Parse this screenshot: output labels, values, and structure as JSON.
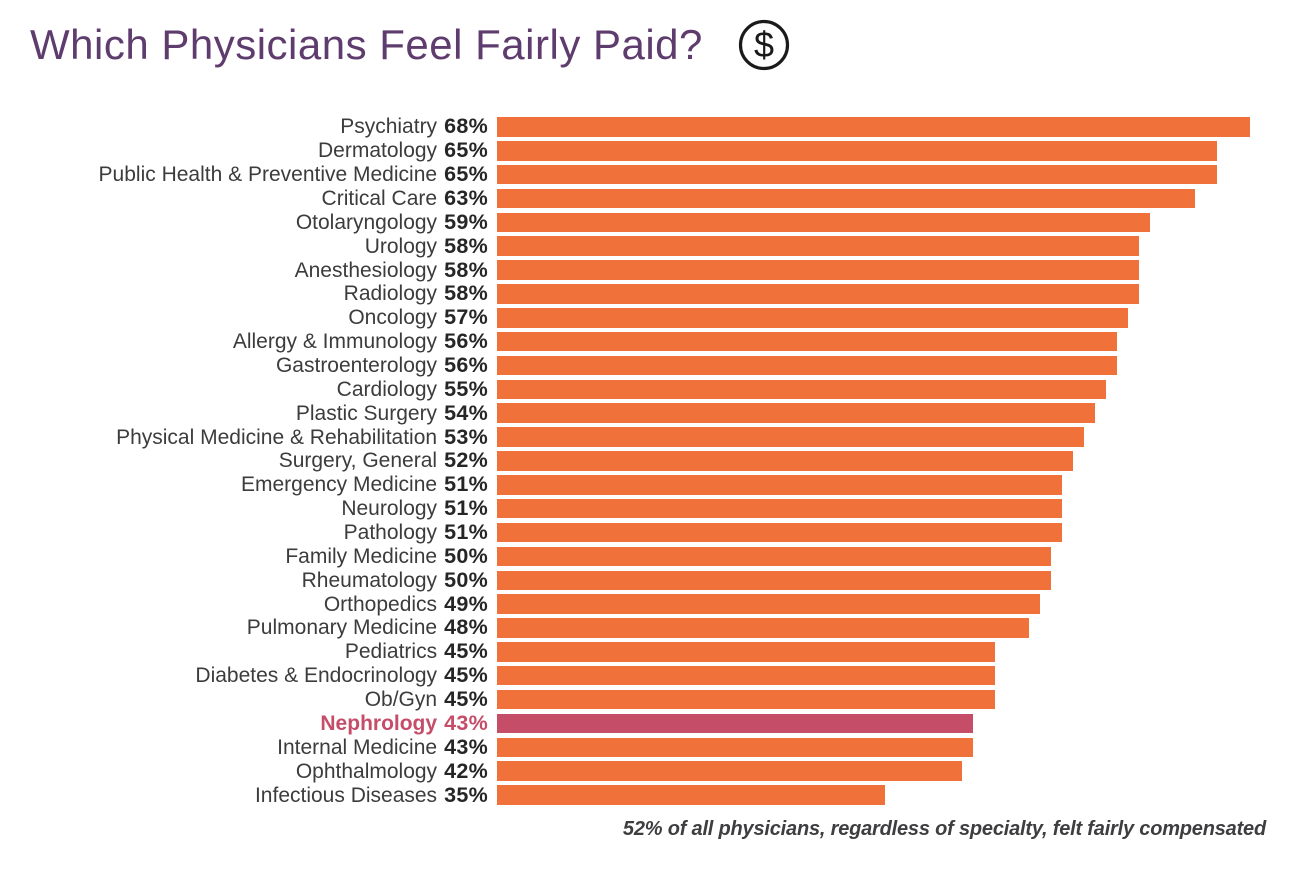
{
  "header": {
    "title": "Which Physicians Feel Fairly Paid?",
    "icon": "dollar-circle-icon"
  },
  "footnote": "52% of all physicians, regardless of specialty, felt fairly compensated",
  "colors": {
    "bar": "#F0713A",
    "highlight_bar": "#C64D68",
    "title": "#5E3C6E",
    "label": "#3C3C3C",
    "value": "#262626",
    "footnote": "#3E3E40",
    "icon": "#1A1A1A"
  },
  "chart_data": {
    "type": "bar",
    "orientation": "horizontal",
    "title": "Which Physicians Feel Fairly Paid?",
    "xlabel": "",
    "ylabel": "",
    "xlim": [
      0,
      68
    ],
    "grid": false,
    "legend": false,
    "value_format": "{v}%",
    "highlight_category": "Nephrology",
    "categories": [
      "Psychiatry",
      "Dermatology",
      "Public Health & Preventive Medicine",
      "Critical Care",
      "Otolaryngology",
      "Urology",
      "Anesthesiology",
      "Radiology",
      "Oncology",
      "Allergy & Immunology",
      "Gastroenterology",
      "Cardiology",
      "Plastic Surgery",
      "Physical Medicine & Rehabilitation",
      "Surgery, General",
      "Emergency Medicine",
      "Neurology",
      "Pathology",
      "Family Medicine",
      "Rheumatology",
      "Orthopedics",
      "Pulmonary Medicine",
      "Pediatrics",
      "Diabetes & Endocrinology",
      "Ob/Gyn",
      "Nephrology",
      "Internal Medicine",
      "Ophthalmology",
      "Infectious Diseases"
    ],
    "values": [
      68,
      65,
      65,
      63,
      59,
      58,
      58,
      58,
      57,
      56,
      56,
      55,
      54,
      53,
      52,
      51,
      51,
      51,
      50,
      50,
      49,
      48,
      45,
      45,
      45,
      43,
      43,
      42,
      35
    ],
    "annotation": "52% of all physicians, regardless of specialty, felt fairly compensated"
  }
}
